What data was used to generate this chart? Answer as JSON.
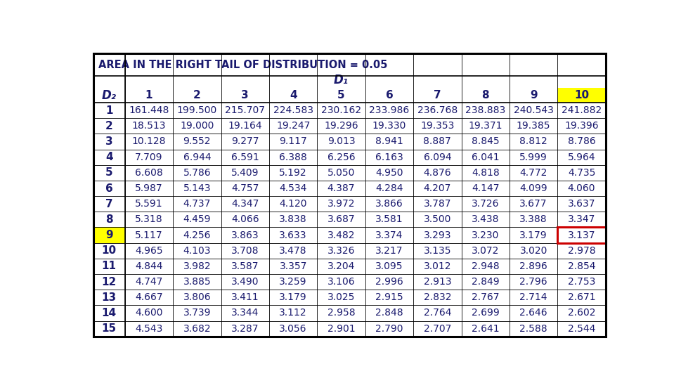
{
  "title": "AREA IN THE RIGHT TAIL OF DISTRIBUTION = 0.05",
  "d1_label": "D₁",
  "d2_label": "D₂",
  "col_headers": [
    "1",
    "2",
    "3",
    "4",
    "5",
    "6",
    "7",
    "8",
    "9",
    "10"
  ],
  "row_headers": [
    "1",
    "2",
    "3",
    "4",
    "5",
    "6",
    "7",
    "8",
    "9",
    "10",
    "11",
    "12",
    "13",
    "14",
    "15"
  ],
  "data": [
    [
      161.448,
      199.5,
      215.707,
      224.583,
      230.162,
      233.986,
      236.768,
      238.883,
      240.543,
      241.882
    ],
    [
      18.513,
      19.0,
      19.164,
      19.247,
      19.296,
      19.33,
      19.353,
      19.371,
      19.385,
      19.396
    ],
    [
      10.128,
      9.552,
      9.277,
      9.117,
      9.013,
      8.941,
      8.887,
      8.845,
      8.812,
      8.786
    ],
    [
      7.709,
      6.944,
      6.591,
      6.388,
      6.256,
      6.163,
      6.094,
      6.041,
      5.999,
      5.964
    ],
    [
      6.608,
      5.786,
      5.409,
      5.192,
      5.05,
      4.95,
      4.876,
      4.818,
      4.772,
      4.735
    ],
    [
      5.987,
      5.143,
      4.757,
      4.534,
      4.387,
      4.284,
      4.207,
      4.147,
      4.099,
      4.06
    ],
    [
      5.591,
      4.737,
      4.347,
      4.12,
      3.972,
      3.866,
      3.787,
      3.726,
      3.677,
      3.637
    ],
    [
      5.318,
      4.459,
      4.066,
      3.838,
      3.687,
      3.581,
      3.5,
      3.438,
      3.388,
      3.347
    ],
    [
      5.117,
      4.256,
      3.863,
      3.633,
      3.482,
      3.374,
      3.293,
      3.23,
      3.179,
      3.137
    ],
    [
      4.965,
      4.103,
      3.708,
      3.478,
      3.326,
      3.217,
      3.135,
      3.072,
      3.02,
      2.978
    ],
    [
      4.844,
      3.982,
      3.587,
      3.357,
      3.204,
      3.095,
      3.012,
      2.948,
      2.896,
      2.854
    ],
    [
      4.747,
      3.885,
      3.49,
      3.259,
      3.106,
      2.996,
      2.913,
      2.849,
      2.796,
      2.753
    ],
    [
      4.667,
      3.806,
      3.411,
      3.179,
      3.025,
      2.915,
      2.832,
      2.767,
      2.714,
      2.671
    ],
    [
      4.6,
      3.739,
      3.344,
      3.112,
      2.958,
      2.848,
      2.764,
      2.699,
      2.646,
      2.602
    ],
    [
      4.543,
      3.682,
      3.287,
      3.056,
      2.901,
      2.79,
      2.707,
      2.641,
      2.588,
      2.544
    ]
  ],
  "highlight_col_idx": 9,
  "highlight_row_idx": 8,
  "highlight_color": "#ffff00",
  "highlight_cell_border_color": "#cc0000",
  "outer_border_color": "#000000",
  "bg_color": "#ffffff",
  "border_color": "#000000",
  "text_color": "#1a1a6e",
  "title_fontsize": 10.5,
  "header_fontsize": 11,
  "cell_fontsize": 10
}
